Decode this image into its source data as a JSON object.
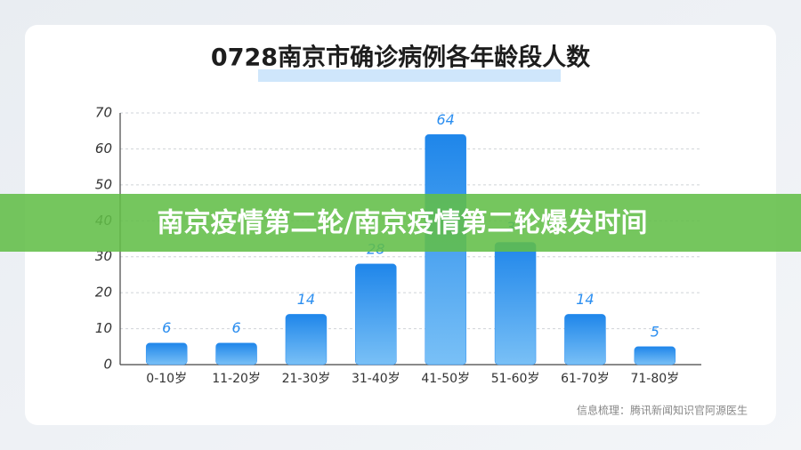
{
  "chart_data": {
    "type": "bar",
    "title": "0728南京市确诊病例各年龄段人数",
    "categories": [
      "0-10岁",
      "11-20岁",
      "21-30岁",
      "31-40岁",
      "41-50岁",
      "51-60岁",
      "61-70岁",
      "71-80岁"
    ],
    "values": [
      6,
      6,
      14,
      28,
      64,
      34,
      14,
      5
    ],
    "color": "#2b8ef0",
    "ylim": [
      0,
      70
    ],
    "yticks": [
      0,
      10,
      20,
      30,
      40,
      50,
      60,
      70
    ],
    "grid": true,
    "source": "信息梳理：腾讯新闻知识官阿源医生",
    "banner": "南京疫情第二轮/南京疫情第二轮爆发时间"
  }
}
